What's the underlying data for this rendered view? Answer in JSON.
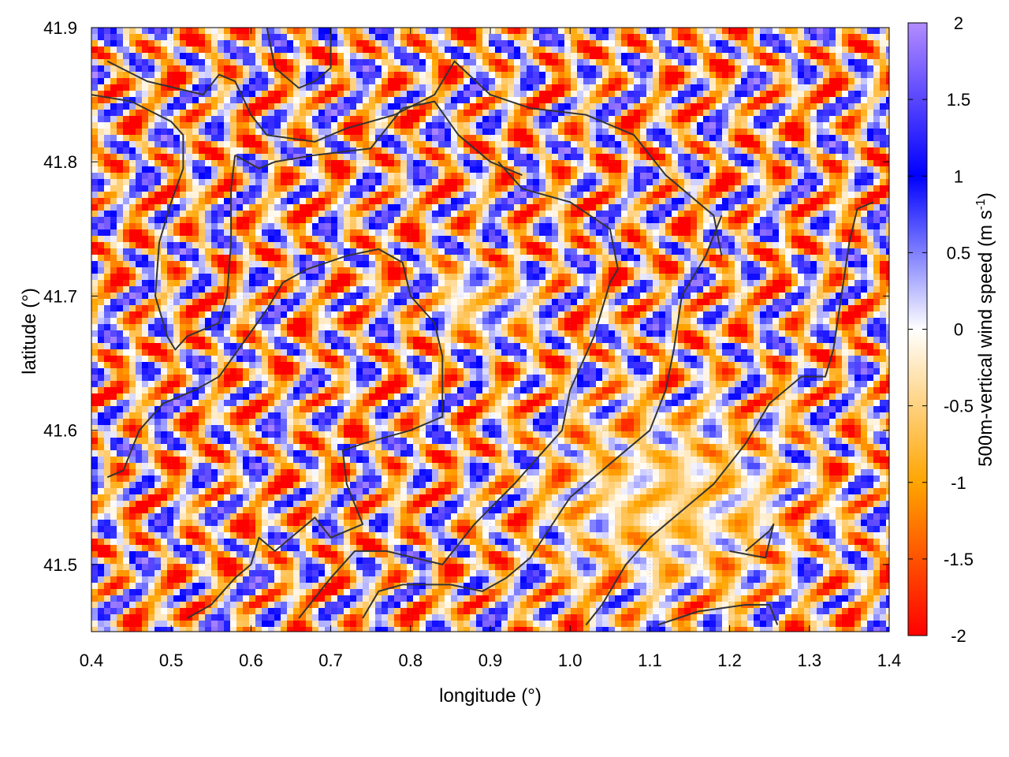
{
  "chart_data": {
    "type": "heatmap",
    "title": "",
    "xlabel": "longitude (°)",
    "ylabel": "latitude (°)",
    "colorbar_label_main": "500m-vertical wind speed (m s",
    "colorbar_label_sup": "-1",
    "colorbar_label_end": ")",
    "xlim": [
      0.4,
      1.4
    ],
    "ylim": [
      41.45,
      41.9
    ],
    "x_ticks": [
      0.4,
      0.5,
      0.6,
      0.7,
      0.8,
      0.9,
      1.0,
      1.1,
      1.2,
      1.3,
      1.4
    ],
    "x_tick_labels": [
      "0.4",
      "0.5",
      "0.6",
      "0.7",
      "0.8",
      "0.9",
      "1.0",
      "1.1",
      "1.2",
      "1.3",
      "1.4"
    ],
    "y_ticks": [
      41.5,
      41.6,
      41.7,
      41.8,
      41.9
    ],
    "y_tick_labels": [
      "41.5",
      "41.6",
      "41.7",
      "41.8",
      "41.9"
    ],
    "color_range": [
      -2,
      2
    ],
    "colorbar_ticks": [
      2,
      1.5,
      1,
      0.5,
      0,
      -0.5,
      -1,
      -1.5,
      -2
    ],
    "colorbar_tick_labels": [
      "2",
      "1.5",
      "1",
      "0.5",
      "0",
      "-0.5",
      "-1",
      "-1.5",
      "-2"
    ],
    "colormap": [
      {
        "value": -2,
        "color": "#ff0000"
      },
      {
        "value": -1,
        "color": "#ffa500"
      },
      {
        "value": 0,
        "color": "#ffffff"
      },
      {
        "value": 1,
        "color": "#0000ff"
      },
      {
        "value": 2,
        "color": "#b28cff"
      }
    ],
    "grid": true,
    "boundary_color": "#333333",
    "boundaries": [
      [
        [
          0.42,
          41.875
        ],
        [
          0.47,
          41.86
        ],
        [
          0.54,
          41.85
        ],
        [
          0.56,
          41.865
        ],
        [
          0.58,
          41.86
        ],
        [
          0.6,
          41.835
        ],
        [
          0.62,
          41.82
        ],
        [
          0.68,
          41.815
        ],
        [
          0.72,
          41.825
        ],
        [
          0.78,
          41.835
        ],
        [
          0.83,
          41.85
        ],
        [
          0.855,
          41.875
        ],
        [
          0.9,
          41.85
        ],
        [
          0.95,
          41.84
        ],
        [
          1.02,
          41.835
        ],
        [
          1.08,
          41.82
        ],
        [
          1.12,
          41.79
        ],
        [
          1.18,
          41.76
        ],
        [
          1.19,
          41.73
        ]
      ],
      [
        [
          0.4,
          41.85
        ],
        [
          0.45,
          41.845
        ],
        [
          0.5,
          41.83
        ],
        [
          0.515,
          41.82
        ],
        [
          0.515,
          41.795
        ],
        [
          0.5,
          41.77
        ],
        [
          0.485,
          41.74
        ],
        [
          0.48,
          41.7
        ],
        [
          0.495,
          41.67
        ],
        [
          0.505,
          41.66
        ],
        [
          0.52,
          41.67
        ],
        [
          0.56,
          41.68
        ],
        [
          0.57,
          41.7
        ],
        [
          0.575,
          41.74
        ],
        [
          0.575,
          41.78
        ],
        [
          0.58,
          41.805
        ]
      ],
      [
        [
          0.58,
          41.805
        ],
        [
          0.61,
          41.795
        ],
        [
          0.63,
          41.8
        ],
        [
          0.68,
          41.805
        ],
        [
          0.75,
          41.81
        ],
        [
          0.79,
          41.84
        ]
      ],
      [
        [
          0.79,
          41.84
        ],
        [
          0.83,
          41.845
        ],
        [
          0.86,
          41.82
        ],
        [
          0.9,
          41.8
        ],
        [
          0.94,
          41.79
        ]
      ],
      [
        [
          0.42,
          41.565
        ],
        [
          0.44,
          41.57
        ],
        [
          0.46,
          41.6
        ],
        [
          0.49,
          41.62
        ],
        [
          0.53,
          41.63
        ],
        [
          0.56,
          41.64
        ],
        [
          0.59,
          41.665
        ],
        [
          0.62,
          41.69
        ],
        [
          0.64,
          41.71
        ],
        [
          0.67,
          41.72
        ],
        [
          0.72,
          41.73
        ],
        [
          0.76,
          41.735
        ],
        [
          0.79,
          41.725
        ],
        [
          0.8,
          41.7
        ],
        [
          0.83,
          41.68
        ],
        [
          0.84,
          41.655
        ],
        [
          0.84,
          41.61
        ],
        [
          0.8,
          41.6
        ],
        [
          0.74,
          41.59
        ],
        [
          0.715,
          41.585
        ],
        [
          0.72,
          41.56
        ],
        [
          0.74,
          41.53
        ],
        [
          0.7,
          41.52
        ],
        [
          0.68,
          41.535
        ],
        [
          0.63,
          41.51
        ],
        [
          0.61,
          41.52
        ],
        [
          0.6,
          41.5
        ],
        [
          0.58,
          41.49
        ],
        [
          0.55,
          41.47
        ],
        [
          0.52,
          41.46
        ]
      ],
      [
        [
          0.66,
          41.46
        ],
        [
          0.7,
          41.49
        ],
        [
          0.73,
          41.51
        ],
        [
          0.77,
          41.51
        ],
        [
          0.84,
          41.5
        ],
        [
          0.88,
          41.53
        ],
        [
          0.93,
          41.56
        ],
        [
          0.96,
          41.58
        ],
        [
          0.99,
          41.6
        ],
        [
          1.0,
          41.63
        ],
        [
          1.03,
          41.67
        ],
        [
          1.05,
          41.71
        ],
        [
          1.06,
          41.72
        ],
        [
          1.05,
          41.75
        ],
        [
          1.0,
          41.77
        ],
        [
          0.94,
          41.78
        ],
        [
          0.91,
          41.8
        ]
      ],
      [
        [
          0.74,
          41.46
        ],
        [
          0.76,
          41.48
        ],
        [
          0.79,
          41.485
        ],
        [
          0.85,
          41.485
        ],
        [
          0.89,
          41.48
        ],
        [
          0.92,
          41.49
        ],
        [
          0.95,
          41.505
        ],
        [
          1.0,
          41.55
        ],
        [
          1.06,
          41.58
        ],
        [
          1.1,
          41.6
        ],
        [
          1.12,
          41.63
        ],
        [
          1.13,
          41.66
        ],
        [
          1.14,
          41.7
        ],
        [
          1.17,
          41.73
        ],
        [
          1.19,
          41.76
        ]
      ],
      [
        [
          1.02,
          41.455
        ],
        [
          1.04,
          41.47
        ],
        [
          1.07,
          41.5
        ],
        [
          1.1,
          41.52
        ],
        [
          1.14,
          41.54
        ],
        [
          1.18,
          41.56
        ],
        [
          1.22,
          41.59
        ],
        [
          1.25,
          41.62
        ],
        [
          1.29,
          41.64
        ],
        [
          1.32,
          41.64
        ],
        [
          1.33,
          41.66
        ],
        [
          1.34,
          41.7
        ],
        [
          1.35,
          41.74
        ],
        [
          1.36,
          41.765
        ],
        [
          1.38,
          41.77
        ]
      ],
      [
        [
          1.11,
          41.455
        ],
        [
          1.16,
          41.465
        ],
        [
          1.22,
          41.47
        ],
        [
          1.25,
          41.47
        ],
        [
          1.26,
          41.455
        ]
      ],
      [
        [
          1.2,
          41.51
        ],
        [
          1.245,
          41.505
        ],
        [
          1.255,
          41.53
        ],
        [
          1.25,
          41.525
        ],
        [
          1.22,
          41.51
        ]
      ],
      [
        [
          0.62,
          41.9
        ],
        [
          0.63,
          41.87
        ],
        [
          0.66,
          41.855
        ],
        [
          0.68,
          41.86
        ],
        [
          0.7,
          41.87
        ],
        [
          0.7,
          41.9
        ]
      ]
    ]
  }
}
